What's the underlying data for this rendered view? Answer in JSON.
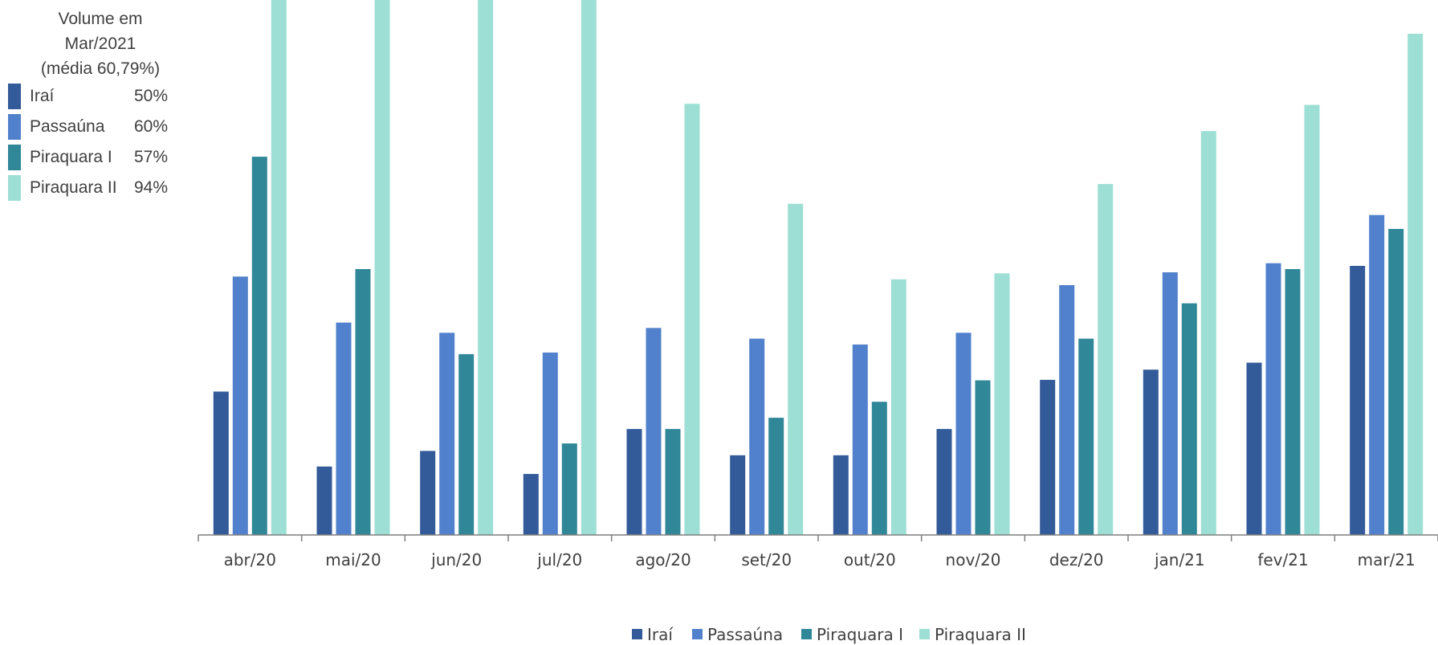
{
  "chart_data": {
    "type": "bar",
    "title": "",
    "xlabel": "",
    "ylabel": "",
    "ylim": [
      0,
      100
    ],
    "grid": false,
    "legend_position": "bottom",
    "categories": [
      "abr/20",
      "mai/20",
      "jun/20",
      "jul/20",
      "ago/20",
      "set/20",
      "out/20",
      "nov/20",
      "dez/20",
      "jan/21",
      "fev/21",
      "mar/21"
    ],
    "series": [
      {
        "name": "Iraí",
        "color": "#335a99",
        "values": [
          26.8,
          12.8,
          15.7,
          11.4,
          19.8,
          14.9,
          14.9,
          19.8,
          29.0,
          30.9,
          32.2,
          50.3
        ]
      },
      {
        "name": "Passaúna",
        "color": "#5181cc",
        "values": [
          48.3,
          39.7,
          37.8,
          34.1,
          38.7,
          36.7,
          35.6,
          37.8,
          46.7,
          49.1,
          50.8,
          59.8
        ]
      },
      {
        "name": "Piraquara I",
        "color": "#308798",
        "values": [
          70.7,
          49.7,
          33.8,
          17.1,
          19.8,
          21.9,
          24.9,
          28.9,
          36.7,
          43.3,
          49.7,
          57.2
        ]
      },
      {
        "name": "Piraquara II",
        "color": "#9ddfd4",
        "values": [
          100.0,
          100.0,
          100.0,
          100.0,
          80.6,
          61.9,
          47.8,
          48.9,
          65.6,
          75.5,
          80.4,
          93.7
        ]
      }
    ]
  },
  "side_legend": {
    "title_lines": [
      "Volume em",
      "Mar/2021",
      "(média 60,79%)"
    ],
    "rows": [
      {
        "name": "Iraí",
        "pct": "50%",
        "color": "#335a99"
      },
      {
        "name": "Passaúna",
        "pct": "60%",
        "color": "#5181cc"
      },
      {
        "name": "Piraquara I",
        "pct": "57%",
        "color": "#308798"
      },
      {
        "name": "Piraquara II",
        "pct": "94%",
        "color": "#9ddfd4"
      }
    ]
  }
}
